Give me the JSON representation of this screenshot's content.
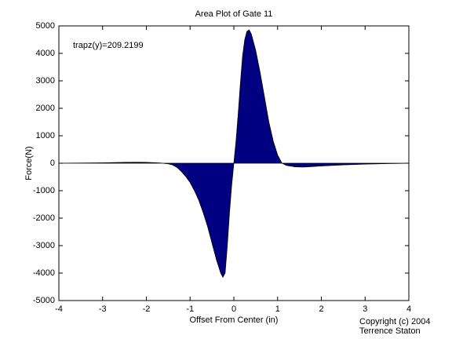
{
  "chart_data": {
    "type": "area",
    "title": "Area Plot of Gate 11",
    "xlabel": "Offset From Center (in)",
    "ylabel": "Force(N)",
    "annotation": "trapz(y)=209.2199",
    "footer": [
      "Copyright (c) 2004",
      "Terrence Staton"
    ],
    "color": "#000080",
    "x": [
      -4,
      -3.5,
      -3,
      -2.5,
      -2.2,
      -2,
      -1.7,
      -1.5,
      -1.4,
      -1.3,
      -1.2,
      -1.1,
      -1.0,
      -0.9,
      -0.8,
      -0.7,
      -0.6,
      -0.5,
      -0.4,
      -0.3,
      -0.25,
      -0.2,
      -0.15,
      -0.1,
      -0.05,
      0,
      0.05,
      0.1,
      0.15,
      0.2,
      0.25,
      0.3,
      0.35,
      0.4,
      0.5,
      0.6,
      0.7,
      0.8,
      0.9,
      1.0,
      1.1,
      1.2,
      1.4,
      1.6,
      1.8,
      2.0,
      2.5,
      3.0,
      3.5,
      4
    ],
    "values": [
      0,
      5,
      15,
      30,
      35,
      30,
      10,
      -20,
      -60,
      -150,
      -300,
      -480,
      -700,
      -1000,
      -1350,
      -1800,
      -2300,
      -2900,
      -3500,
      -4000,
      -4150,
      -4000,
      -3000,
      -1800,
      -800,
      0,
      800,
      1800,
      2900,
      3900,
      4500,
      4800,
      4850,
      4700,
      4100,
      3300,
      2400,
      1500,
      800,
      300,
      0,
      -80,
      -130,
      -140,
      -120,
      -100,
      -60,
      -30,
      -15,
      0
    ],
    "xlim": [
      -4,
      4
    ],
    "xticks": [
      -4,
      -3,
      -2,
      -1,
      0,
      1,
      2,
      3,
      4
    ],
    "ylim": [
      -5000,
      5000
    ],
    "yticks": [
      -5000,
      -4000,
      -3000,
      -2000,
      -1000,
      0,
      1000,
      2000,
      3000,
      4000,
      5000
    ],
    "grid": false
  }
}
